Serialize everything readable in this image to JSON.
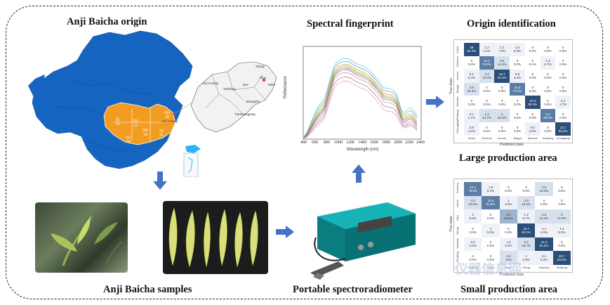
{
  "titles": {
    "origin": "Anji Baicha origin",
    "spectral": "Spectral fingerprint",
    "identification": "Origin identification",
    "large": "Large production area",
    "samples": "Anji Baicha samples",
    "spectro": "Portable spectroradiometer",
    "small": "Small production area"
  },
  "map": {
    "regions": [
      {
        "abbr": "SC",
        "count": "23"
      },
      {
        "abbr": "CQ",
        "count": "15"
      },
      {
        "abbr": "GZ",
        "count": "18"
      },
      {
        "abbr": "HN",
        "count": "19"
      },
      {
        "abbr": "ZX",
        "count": "21"
      },
      {
        "abbr": "AH",
        "count": "29"
      }
    ],
    "inset_labels": [
      "Anji County",
      "Anji County",
      "Xiaofeng",
      "Dixi",
      "Dipu",
      "Shangshu",
      "Tianhuangping",
      "Xilong",
      "Meixi"
    ],
    "colors": {
      "land": "#1565c0",
      "highlight": "#f39c22",
      "inset": "#f2f2f2",
      "sea": "#4fc3f7"
    }
  },
  "spectrum": {
    "ylabel": "Reflectance",
    "xlabel": "Wavelength (nm)",
    "xticks": [
      "400",
      "600",
      "800",
      "1000",
      "1200",
      "1400",
      "1600",
      "1800",
      "2000",
      "2200",
      "2400"
    ]
  },
  "cm_large": {
    "ylabel": "True class",
    "xlabel": "Predicted class",
    "classes": [
      "Anhui",
      "Guizhou",
      "Hunan",
      "Jiangxi",
      "Sichuan",
      "Zhejiang",
      "Chongqing"
    ],
    "cells": [
      [
        "28\n82.4%",
        "1.2\n4.2%",
        "2.2\n7.6%",
        "1.6\n5.3%",
        "0\n0.0%",
        "0\n0.0%",
        "0\n0.0%"
      ],
      [
        "0\n0.0%",
        "14.2\n78.9%",
        "2.6\n14.4%",
        "0\n0.0%",
        "0\n0.0%",
        "1.2\n6.7%",
        "0\n0.0%"
      ],
      [
        "0.1\n0.4%",
        "2.4\n12.0%",
        "16.7\n82.0%",
        "0.8\n4.4%",
        "0\n0.0%",
        "0\n0.0%",
        "0\n0.0%"
      ],
      [
        "3.5\n16.3%",
        "0\n0.0%",
        "0\n0.0%",
        "15.4\n73.4%",
        "0\n0.0%",
        "0\n0.0%",
        "0\n0.0%"
      ],
      [
        "0\n0.0%",
        "0\n0.0%",
        "0\n0.0%",
        "0\n0.0%",
        "22.6\n98.3%",
        "0\n0.0%",
        "0.4\n1.7%"
      ],
      [
        "0.1\n1.1%",
        "1.3\n14.7%",
        "2\n22.2%",
        "0\n0.0%",
        "0\n0.0%",
        "5.4\n60.0%",
        "0\n0.0%"
      ],
      [
        "0.8\n4.2%",
        "0\n0.0%",
        "0\n0.0%",
        "0\n0.0%",
        "0.5\n2.6%",
        "0\n0.0%",
        "13.7\n86.6%"
      ]
    ],
    "diag_color": "#2b4f7a"
  },
  "cm_small": {
    "ylabel": "True class",
    "xlabel": "Predicted class",
    "classes": [
      "Kunlong",
      "Lianfu",
      "Dipu",
      "Xilong",
      "Xiaoxian",
      "Zhejiang"
    ],
    "cells": [
      [
        "10.4\n78.8%",
        "1.8\n8.4%",
        "0\n0.0%",
        "0\n0.0%",
        "2.8\n13.3%",
        "0\n0.0%"
      ],
      [
        "4.3\n20.5%",
        "13.6\n61.8%",
        "1\n4.5%",
        "2.9\n13.2%",
        "0\n0.0%",
        "0\n0.0%"
      ],
      [
        "1\n5.5%",
        "0\n0.0%",
        "8.2\n45.6%",
        "1.2\n6.7%",
        "2.6\n14.4%",
        "5\n27.8%"
      ],
      [
        "0\n0.0%",
        "2\n8.3%",
        "0\n0.0%",
        "19.7\n82.1%",
        "1.1\n4.6%",
        "1.2\n5.0%"
      ],
      [
        "0.6\n2.0%",
        "0\n0.0%",
        "1.9\n6.3%",
        "3.2\n10.7%",
        "24.3\n81.0%",
        "0\n0.0%"
      ],
      [
        "0\n0.0%",
        "0\n0.0%",
        "4.2\n12%",
        "1\n2.9%",
        "0.1\n0.3%",
        "29.7\n84.9%"
      ]
    ]
  },
  "watermark": "仪器信息网"
}
